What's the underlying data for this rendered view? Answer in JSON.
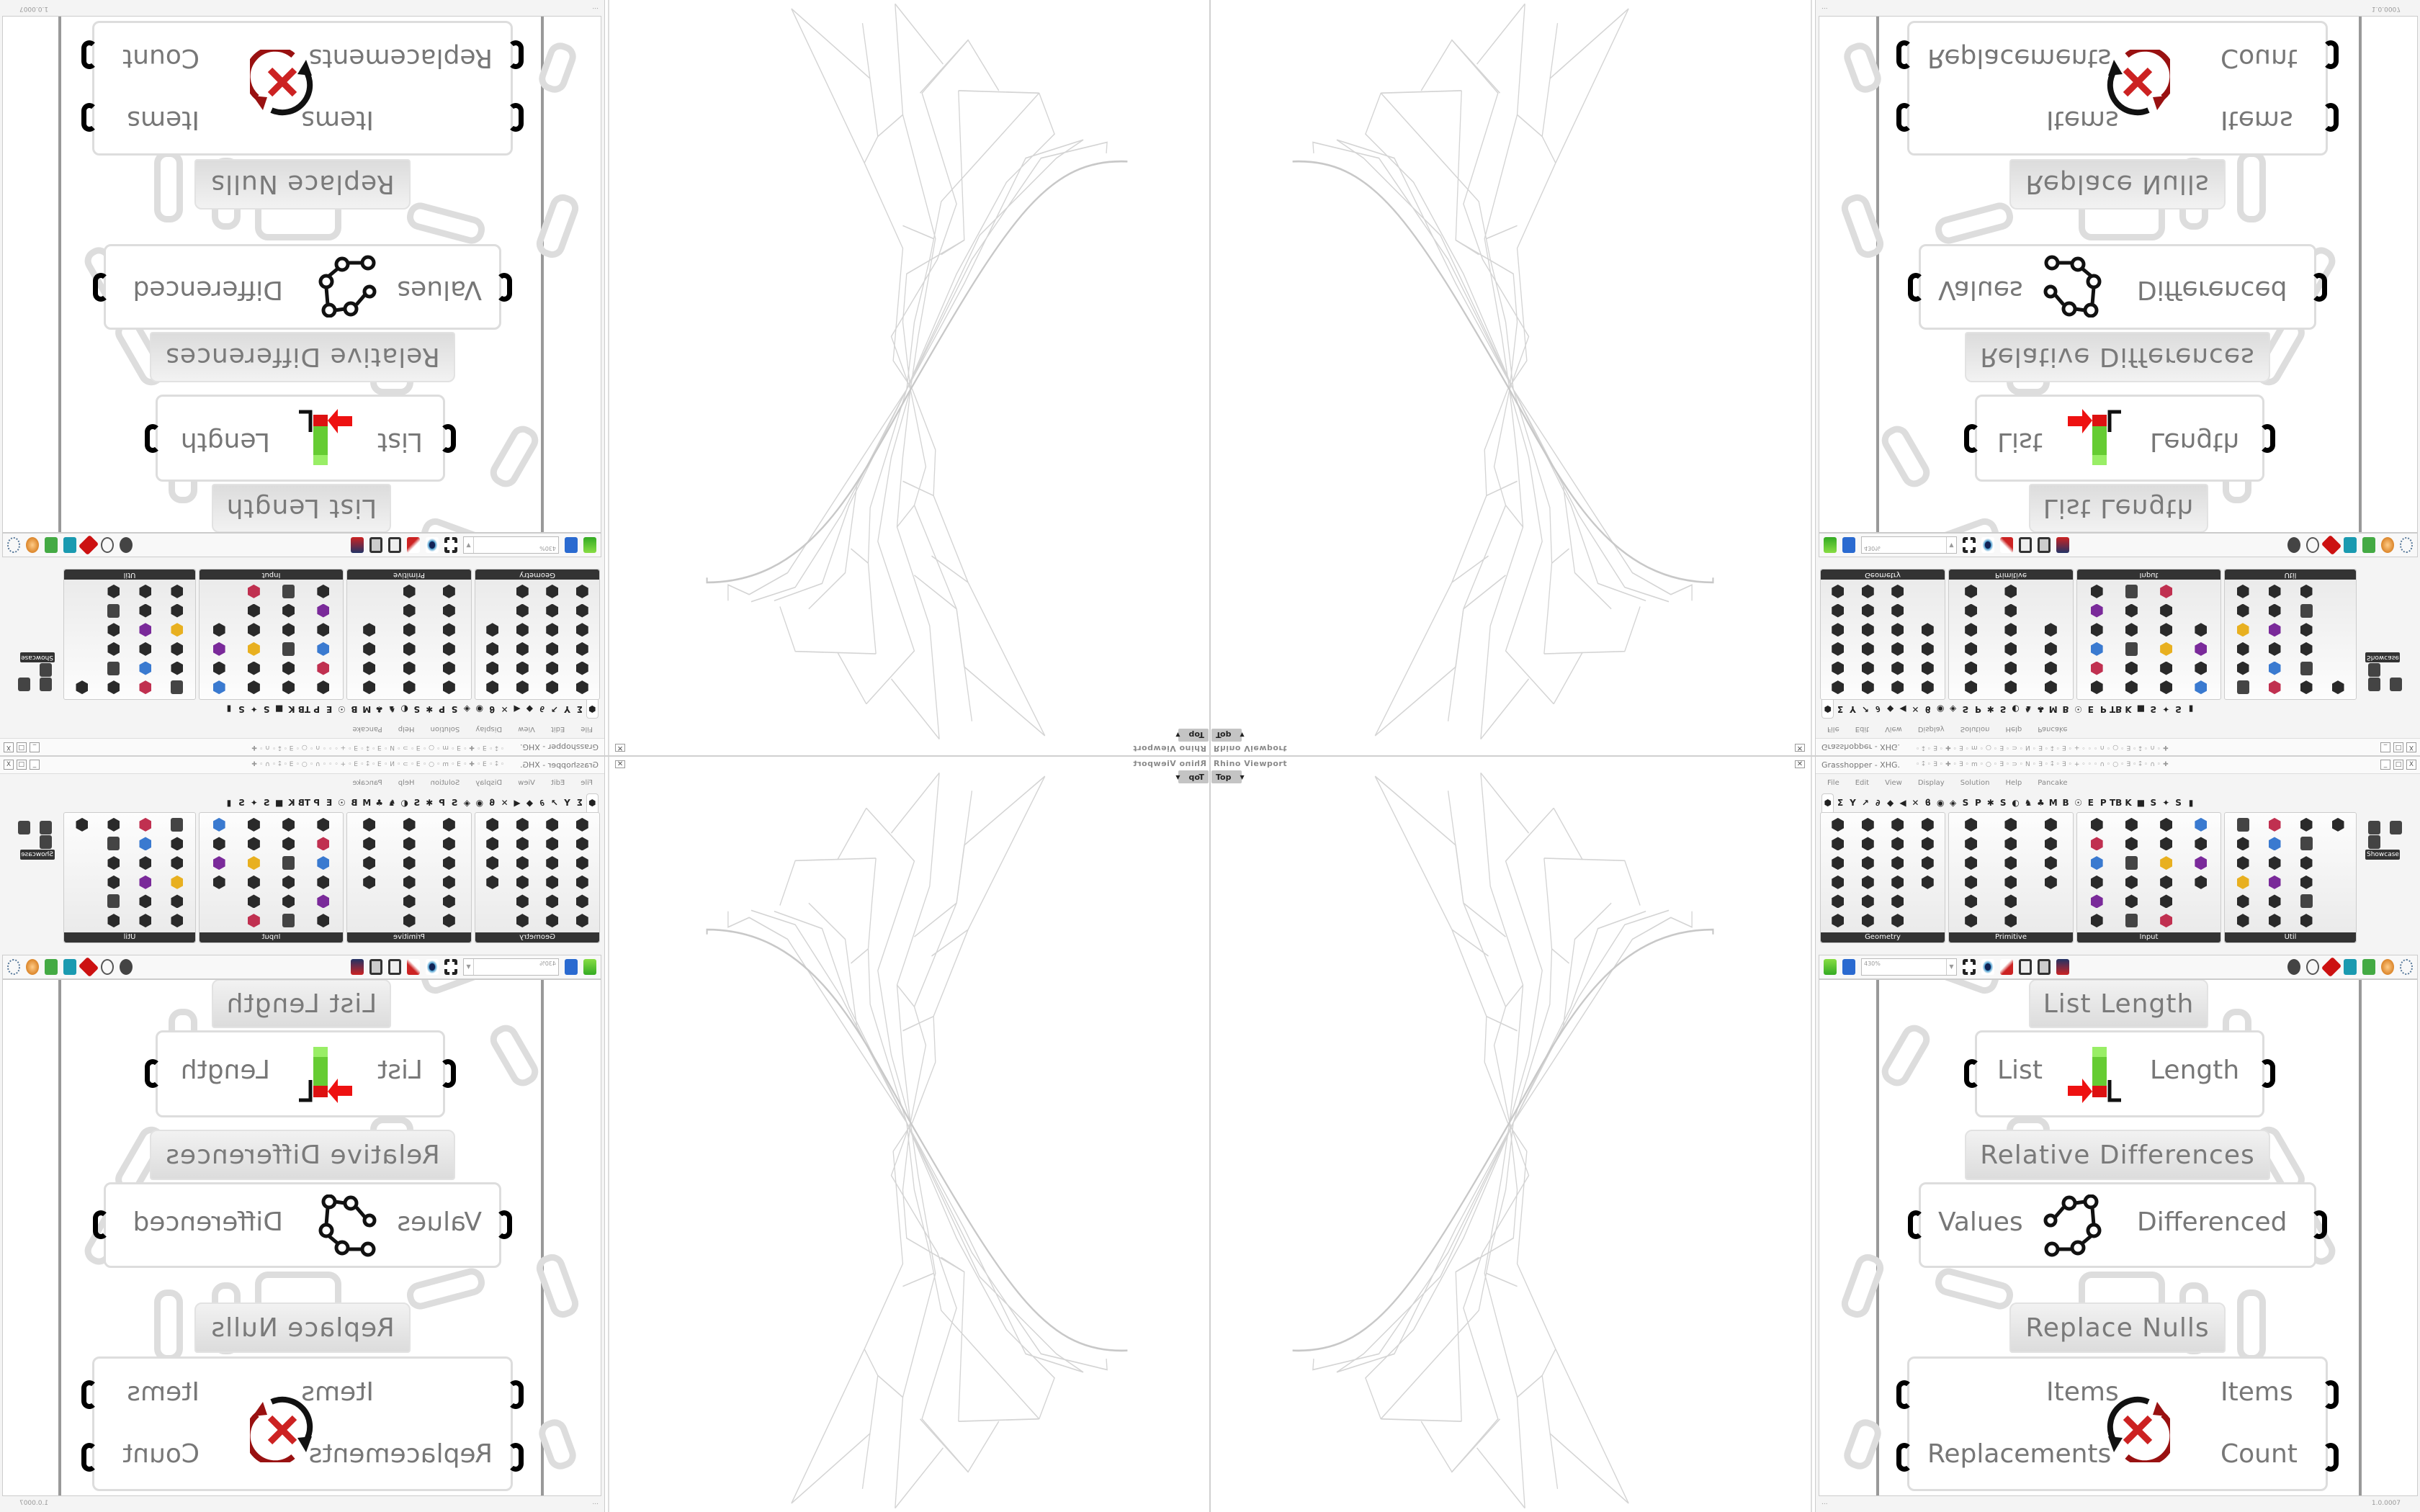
{
  "rhino_viewport": {
    "label": "Rhino Viewport",
    "view": "Top",
    "view_dropdown_icon": "chevron-down-icon",
    "close_icon": "close-icon",
    "line_color": "#d4d4d4"
  },
  "grasshopper": {
    "title": "Grasshopper - XHG.",
    "menu": [
      "File",
      "Edit",
      "View",
      "Display",
      "Solution",
      "Help",
      "Pancake"
    ],
    "tabs": [
      "⬢",
      "Σ",
      "Y",
      "↗",
      "∂",
      "◆",
      "◀",
      "✕",
      "ϐ",
      "◉",
      "◈",
      "S",
      "P",
      "✱",
      "S",
      "◐",
      "♞",
      "♣",
      "M",
      "B",
      "☉",
      "E",
      "P",
      "TB",
      "K",
      "■",
      "S",
      "✦",
      "S",
      "▮"
    ],
    "panels": [
      {
        "name": "Geometry",
        "expand": "+"
      },
      {
        "name": "Primitive",
        "expand": "+"
      },
      {
        "name": "Input",
        "expand": "+"
      },
      {
        "name": "Util",
        "expand": "+"
      }
    ],
    "showcase_label": "Showcase T...",
    "toolbar": {
      "zoom_value": "430%",
      "icons": [
        "new-file-icon",
        "save-icon",
        "zoom-extents-icon",
        "preview-eye-icon",
        "sketch-icon",
        "bake-icon",
        "lock-icon",
        "axis-icon",
        "shade-icon",
        "wire-icon",
        "red-shade-icon",
        "teal-preview-icon",
        "green-preview-icon",
        "sphere-icon",
        "selection-icon"
      ]
    },
    "canvas": {
      "list_length": {
        "label": "List Length",
        "input": "List",
        "output": "Length",
        "icon": "list-length-icon"
      },
      "relative_differences": {
        "label": "Relative Differences",
        "input": "Values",
        "output": "Differenced",
        "icon": "relative-differences-icon"
      },
      "replace_nulls": {
        "label": "Replace Nulls",
        "inputs": [
          "Items",
          "Replacements"
        ],
        "outputs": [
          "Items",
          "Count"
        ],
        "icon": "replace-nulls-icon"
      }
    },
    "status": {
      "version": "1.0.0007",
      "left": "..."
    },
    "window_buttons": [
      "_",
      "□",
      "X"
    ]
  }
}
